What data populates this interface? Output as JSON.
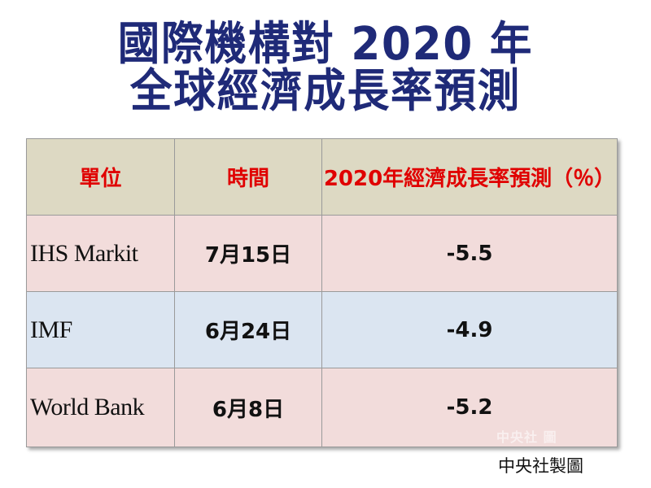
{
  "title": {
    "line1": "國際機構對 2020 年",
    "line2": "全球經濟成長率預測"
  },
  "table": {
    "headers": [
      "單位",
      "時間",
      "2020年經濟成長率預測（％）"
    ],
    "rows": [
      [
        "IHS Markit",
        "7月15日",
        "-5.5"
      ],
      [
        "IMF",
        "6月24日",
        "-4.9"
      ],
      [
        "World Bank",
        "6月8日",
        "-5.2"
      ]
    ]
  },
  "credit": "中央社製圖",
  "watermark": "中央社 圖",
  "colors": {
    "title": "#1f2a78",
    "header_bg": "#ddd9c3",
    "header_text": "#e00000",
    "row_pink": "#f2dcdb",
    "row_blue": "#dbe5f1"
  }
}
